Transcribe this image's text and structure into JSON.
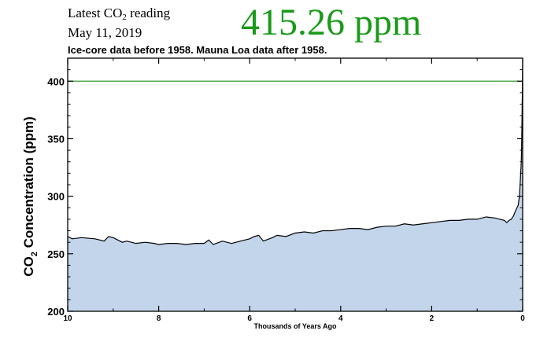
{
  "header": {
    "label_prefix": "Latest CO",
    "label_sub": "2",
    "label_suffix": " reading",
    "date": "May 11, 2019",
    "value": "415.26 ppm",
    "value_color": "#1a9a1a",
    "note": "Ice-core data before 1958. Mauna Loa data after 1958."
  },
  "chart_data": {
    "type": "area",
    "title": "",
    "xlabel": "Thousands of Years Ago",
    "ylabel_prefix": "CO",
    "ylabel_sub": "2",
    "ylabel_suffix": " Concentration (ppm)",
    "xlim": [
      10,
      0
    ],
    "ylim": [
      200,
      420
    ],
    "x_ticks": [
      10,
      8,
      6,
      4,
      2,
      0
    ],
    "y_ticks": [
      200,
      250,
      300,
      350,
      400
    ],
    "reference_line": {
      "y": 400,
      "color": "#2e9a2e"
    },
    "fill_color": "#c2d5ea",
    "line_color": "#000000",
    "grid": false,
    "series": [
      {
        "x": [
          10,
          9.9,
          9.7,
          9.4,
          9.2,
          9.1,
          9.0,
          8.8,
          8.7,
          8.5,
          8.3,
          8.1,
          8.0,
          7.8,
          7.6,
          7.4,
          7.2,
          7.0,
          6.9,
          6.8,
          6.6,
          6.4,
          6.2,
          6.0,
          5.9,
          5.8,
          5.7,
          5.5,
          5.4,
          5.2,
          5.0,
          4.8,
          4.6,
          4.4,
          4.2,
          4.0,
          3.8,
          3.6,
          3.4,
          3.2,
          3.0,
          2.8,
          2.6,
          2.4,
          2.2,
          2.0,
          1.8,
          1.6,
          1.4,
          1.2,
          1.0,
          0.8,
          0.6,
          0.5,
          0.4,
          0.35,
          0.3,
          0.25,
          0.2,
          0.15,
          0.1,
          0.07,
          0.05,
          0.03,
          0.02,
          0.01,
          0
        ],
        "y": [
          265,
          263,
          264,
          263,
          261,
          265,
          264,
          260,
          261,
          259,
          260,
          259,
          258,
          259,
          259,
          258,
          259,
          259,
          262,
          258,
          261,
          259,
          261,
          263,
          265,
          266,
          261,
          264,
          266,
          265,
          268,
          269,
          268,
          270,
          270,
          271,
          272,
          272,
          271,
          273,
          274,
          274,
          276,
          275,
          276,
          277,
          278,
          279,
          279,
          280,
          280,
          282,
          281,
          280,
          279,
          277,
          279,
          280,
          283,
          288,
          292,
          300,
          315,
          330,
          350,
          380,
          415
        ]
      }
    ]
  }
}
